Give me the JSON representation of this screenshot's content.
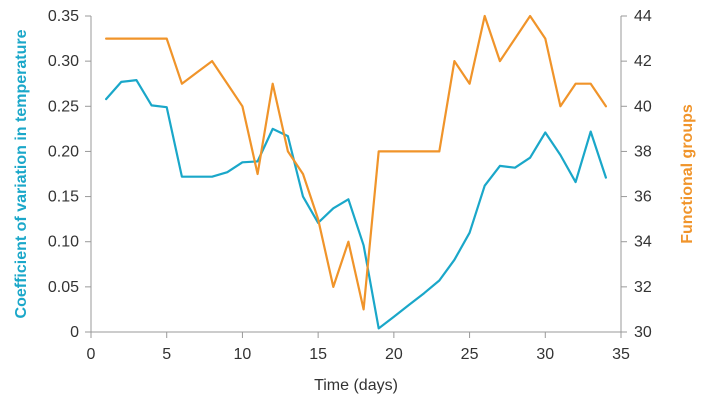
{
  "chart_data": {
    "type": "line",
    "xlabel": "Time (days)",
    "ylabel_left": "Coefficient of variation in temperature",
    "ylabel_right": "Functional groups",
    "xlim": [
      0,
      35
    ],
    "ylim_left": [
      0,
      0.35
    ],
    "ylim_right": [
      30,
      44
    ],
    "xticks": [
      "0",
      "5",
      "10",
      "15",
      "20",
      "25",
      "30",
      "35"
    ],
    "yticks_left": [
      "0",
      "0.05",
      "0.10",
      "0.15",
      "0.20",
      "0.25",
      "0.30",
      "0.35"
    ],
    "yticks_right": [
      "30",
      "32",
      "34",
      "36",
      "38",
      "40",
      "42",
      "44"
    ],
    "grid": false,
    "series": [
      {
        "axis": "left",
        "color": "#1aa7c9",
        "x": [
          1,
          2,
          3,
          4,
          5,
          6,
          7,
          8,
          9,
          10,
          11,
          12,
          13,
          14,
          15,
          16,
          17,
          18,
          19,
          20,
          21,
          22,
          23,
          24,
          25,
          26,
          27,
          28,
          29,
          30,
          31,
          32,
          33,
          34
        ],
        "y": [
          0.258,
          0.277,
          0.279,
          0.251,
          0.249,
          0.172,
          0.172,
          0.172,
          0.177,
          0.188,
          0.189,
          0.225,
          0.217,
          0.15,
          0.121,
          0.137,
          0.147,
          0.096,
          0.004,
          0.017,
          0.03,
          0.043,
          0.057,
          0.08,
          0.11,
          0.162,
          0.184,
          0.182,
          0.193,
          0.221,
          0.196,
          0.166,
          0.222,
          0.171
        ]
      },
      {
        "axis": "right",
        "color": "#f0942a",
        "x": [
          1,
          2,
          3,
          4,
          5,
          6,
          7,
          8,
          9,
          10,
          11,
          12,
          13,
          14,
          15,
          16,
          17,
          18,
          19,
          20,
          21,
          22,
          23,
          24,
          25,
          26,
          27,
          28,
          29,
          30,
          31,
          32,
          33,
          34
        ],
        "y": [
          43,
          43,
          43,
          43,
          43,
          41,
          41.5,
          42,
          41,
          40,
          37,
          41,
          38,
          37,
          35,
          32,
          34,
          31,
          38,
          38,
          38,
          38,
          38,
          42,
          41,
          44,
          42,
          43,
          44,
          43,
          40,
          41,
          41,
          40
        ]
      }
    ]
  }
}
